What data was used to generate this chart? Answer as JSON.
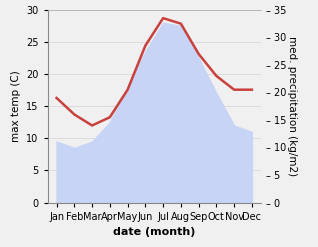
{
  "months": [
    "Jan",
    "Feb",
    "Mar",
    "Apr",
    "May",
    "Jun",
    "Jul",
    "Aug",
    "Sep",
    "Oct",
    "Nov",
    "Dec"
  ],
  "max_temp": [
    9.5,
    8.5,
    9.5,
    12.5,
    18.0,
    23.5,
    28.0,
    27.5,
    22.5,
    17.0,
    12.0,
    11.0
  ],
  "precipitation": [
    19.0,
    16.0,
    14.0,
    15.5,
    20.5,
    28.5,
    33.5,
    32.5,
    27.0,
    23.0,
    20.5,
    20.5
  ],
  "precip_color": "#c8413c",
  "temp_fill_color": "#c8d4f5",
  "ylabel_left": "max temp (C)",
  "ylabel_right": "med. precipitation (kg/m2)",
  "xlabel": "date (month)",
  "ylim_left": [
    0,
    30
  ],
  "ylim_right": [
    0,
    35
  ],
  "yticks_left": [
    0,
    5,
    10,
    15,
    20,
    25,
    30
  ],
  "yticks_right": [
    0,
    5,
    10,
    15,
    20,
    25,
    30,
    35
  ],
  "background_color": "#f0f0f0",
  "grid_color": "#d8d8d8",
  "precip_linewidth": 1.8,
  "ylabel_fontsize": 7.5,
  "xlabel_fontsize": 8,
  "tick_fontsize": 7
}
